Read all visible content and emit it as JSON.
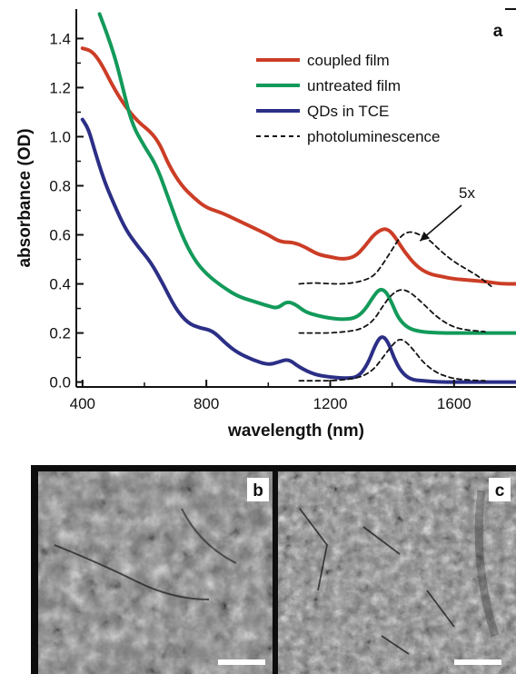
{
  "chart_data": {
    "type": "line",
    "panel_label": "a",
    "xlabel": "wavelength (nm)",
    "ylabel": "absorbance (OD)",
    "xlim": [
      380,
      1800
    ],
    "ylim": [
      -0.02,
      1.52
    ],
    "xticks": [
      400,
      800,
      1200,
      1600
    ],
    "yticks": [
      0.0,
      0.2,
      0.4,
      0.6,
      0.8,
      1.0,
      1.2,
      1.4
    ],
    "grid": false,
    "legend_position": "top-right",
    "annotation": {
      "text": "5x",
      "arrow_target": {
        "x": 1490,
        "y": 0.575
      }
    },
    "series": [
      {
        "name": "coupled film",
        "color": "#cc3d26",
        "style": "solid",
        "x": [
          400,
          430,
          460,
          500,
          540,
          580,
          620,
          650,
          680,
          720,
          760,
          800,
          850,
          900,
          950,
          1000,
          1040,
          1080,
          1120,
          1160,
          1200,
          1240,
          1280,
          1310,
          1340,
          1370,
          1390,
          1410,
          1440,
          1480,
          1520,
          1560,
          1600,
          1650,
          1700,
          1750,
          1800
        ],
        "y": [
          1.36,
          1.35,
          1.3,
          1.2,
          1.12,
          1.06,
          1.02,
          0.97,
          0.88,
          0.8,
          0.75,
          0.71,
          0.69,
          0.66,
          0.63,
          0.6,
          0.57,
          0.57,
          0.55,
          0.52,
          0.51,
          0.5,
          0.51,
          0.55,
          0.6,
          0.625,
          0.62,
          0.59,
          0.53,
          0.47,
          0.44,
          0.43,
          0.42,
          0.415,
          0.41,
          0.4,
          0.4
        ]
      },
      {
        "name": "untreated film",
        "color": "#139a5a",
        "style": "solid",
        "x": [
          455,
          470,
          490,
          510,
          530,
          560,
          600,
          640,
          680,
          720,
          760,
          800,
          850,
          900,
          950,
          1000,
          1030,
          1060,
          1090,
          1120,
          1160,
          1200,
          1240,
          1280,
          1310,
          1340,
          1360,
          1380,
          1400,
          1420,
          1450,
          1490,
          1550,
          1600,
          1700,
          1800
        ],
        "y": [
          1.5,
          1.45,
          1.38,
          1.3,
          1.2,
          1.05,
          0.96,
          0.88,
          0.74,
          0.6,
          0.5,
          0.44,
          0.39,
          0.35,
          0.33,
          0.31,
          0.3,
          0.33,
          0.315,
          0.285,
          0.27,
          0.26,
          0.255,
          0.26,
          0.29,
          0.35,
          0.38,
          0.37,
          0.32,
          0.26,
          0.22,
          0.205,
          0.2,
          0.2,
          0.2,
          0.2
        ]
      },
      {
        "name": "QDs in TCE",
        "color": "#2b2f86",
        "style": "solid",
        "x": [
          400,
          420,
          440,
          470,
          500,
          540,
          580,
          620,
          660,
          700,
          740,
          780,
          820,
          860,
          900,
          950,
          1000,
          1030,
          1065,
          1100,
          1150,
          1200,
          1250,
          1290,
          1320,
          1345,
          1365,
          1385,
          1405,
          1430,
          1460,
          1500,
          1550,
          1600,
          1700,
          1800
        ],
        "y": [
          1.07,
          1.03,
          0.94,
          0.82,
          0.73,
          0.62,
          0.55,
          0.49,
          0.4,
          0.3,
          0.24,
          0.22,
          0.21,
          0.16,
          0.12,
          0.09,
          0.07,
          0.08,
          0.095,
          0.06,
          0.03,
          0.02,
          0.015,
          0.02,
          0.07,
          0.15,
          0.19,
          0.17,
          0.1,
          0.04,
          0.01,
          0.005,
          0.0,
          0.0,
          0.0,
          0.0
        ]
      },
      {
        "name": "photoluminescence",
        "color": "#111111",
        "style": "dashed",
        "x": [
          1100,
          1150,
          1200,
          1250,
          1300,
          1340,
          1370,
          1400,
          1430,
          1460,
          1490,
          1520,
          1560,
          1600,
          1640,
          1680,
          1720
        ],
        "y": [
          0.4,
          0.405,
          0.4,
          0.4,
          0.41,
          0.43,
          0.48,
          0.54,
          0.6,
          0.615,
          0.6,
          0.58,
          0.53,
          0.49,
          0.46,
          0.43,
          0.39
        ]
      },
      {
        "name": "",
        "color": "#111111",
        "style": "dashed",
        "x": [
          1100,
          1150,
          1200,
          1250,
          1300,
          1340,
          1370,
          1400,
          1430,
          1460,
          1500,
          1540,
          1580,
          1620,
          1700
        ],
        "y": [
          0.2,
          0.2,
          0.2,
          0.205,
          0.215,
          0.25,
          0.31,
          0.36,
          0.38,
          0.365,
          0.32,
          0.27,
          0.235,
          0.215,
          0.205
        ]
      },
      {
        "name": "",
        "color": "#111111",
        "style": "dashed",
        "x": [
          1100,
          1150,
          1200,
          1250,
          1300,
          1340,
          1370,
          1400,
          1420,
          1440,
          1470,
          1500,
          1540,
          1580,
          1620,
          1700
        ],
        "y": [
          0.005,
          0.005,
          0.005,
          0.01,
          0.02,
          0.05,
          0.1,
          0.15,
          0.175,
          0.17,
          0.13,
          0.08,
          0.04,
          0.02,
          0.01,
          0.005
        ]
      }
    ]
  },
  "micrographs": [
    {
      "label": "b"
    },
    {
      "label": "c"
    }
  ]
}
